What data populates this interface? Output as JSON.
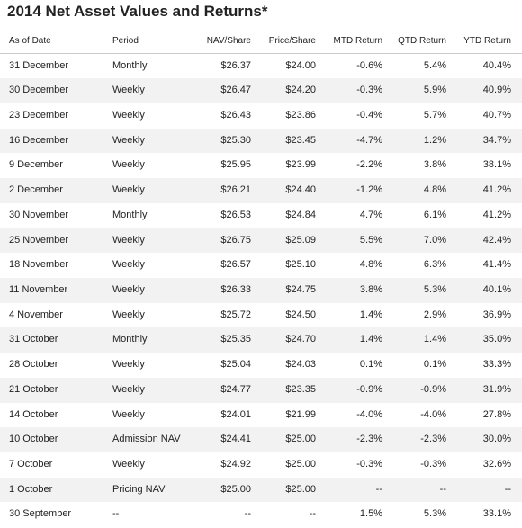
{
  "title": "2014 Net Asset Values and Returns*",
  "table": {
    "header": [
      "As of Date",
      "Period",
      "NAV/Share",
      "Price/Share",
      "MTD Return",
      "QTD Return",
      "YTD Return"
    ],
    "rows": [
      [
        "31 December",
        "Monthly",
        "$26.37",
        "$24.00",
        "-0.6%",
        "5.4%",
        "40.4%"
      ],
      [
        "30 December",
        "Weekly",
        "$26.47",
        "$24.20",
        "-0.3%",
        "5.9%",
        "40.9%"
      ],
      [
        "23 December",
        "Weekly",
        "$26.43",
        "$23.86",
        "-0.4%",
        "5.7%",
        "40.7%"
      ],
      [
        "16 December",
        "Weekly",
        "$25.30",
        "$23.45",
        "-4.7%",
        "1.2%",
        "34.7%"
      ],
      [
        "9 December",
        "Weekly",
        "$25.95",
        "$23.99",
        "-2.2%",
        "3.8%",
        "38.1%"
      ],
      [
        "2 December",
        "Weekly",
        "$26.21",
        "$24.40",
        "-1.2%",
        "4.8%",
        "41.2%"
      ],
      [
        "30 November",
        "Monthly",
        "$26.53",
        "$24.84",
        "4.7%",
        "6.1%",
        "41.2%"
      ],
      [
        "25 November",
        "Weekly",
        "$26.75",
        "$25.09",
        "5.5%",
        "7.0%",
        "42.4%"
      ],
      [
        "18 November",
        "Weekly",
        "$26.57",
        "$25.10",
        "4.8%",
        "6.3%",
        "41.4%"
      ],
      [
        "11 November",
        "Weekly",
        "$26.33",
        "$24.75",
        "3.8%",
        "5.3%",
        "40.1%"
      ],
      [
        "4 November",
        "Weekly",
        "$25.72",
        "$24.50",
        "1.4%",
        "2.9%",
        "36.9%"
      ],
      [
        "31 October",
        "Monthly",
        "$25.35",
        "$24.70",
        "1.4%",
        "1.4%",
        "35.0%"
      ],
      [
        "28 October",
        "Weekly",
        "$25.04",
        "$24.03",
        "0.1%",
        "0.1%",
        "33.3%"
      ],
      [
        "21 October",
        "Weekly",
        "$24.77",
        "$23.35",
        "-0.9%",
        "-0.9%",
        "31.9%"
      ],
      [
        "14 October",
        "Weekly",
        "$24.01",
        "$21.99",
        "-4.0%",
        "-4.0%",
        "27.8%"
      ],
      [
        "10 October",
        "Admission NAV",
        "$24.41",
        "$25.00",
        "-2.3%",
        "-2.3%",
        "30.0%"
      ],
      [
        "7 October",
        "Weekly",
        "$24.92",
        "$25.00",
        "-0.3%",
        "-0.3%",
        "32.6%"
      ],
      [
        "1 October",
        "Pricing NAV",
        "$25.00",
        "$25.00",
        "--",
        "--",
        "--"
      ],
      [
        "30 September",
        "--",
        "--",
        "--",
        "1.5%",
        "5.3%",
        "33.1%"
      ]
    ]
  }
}
